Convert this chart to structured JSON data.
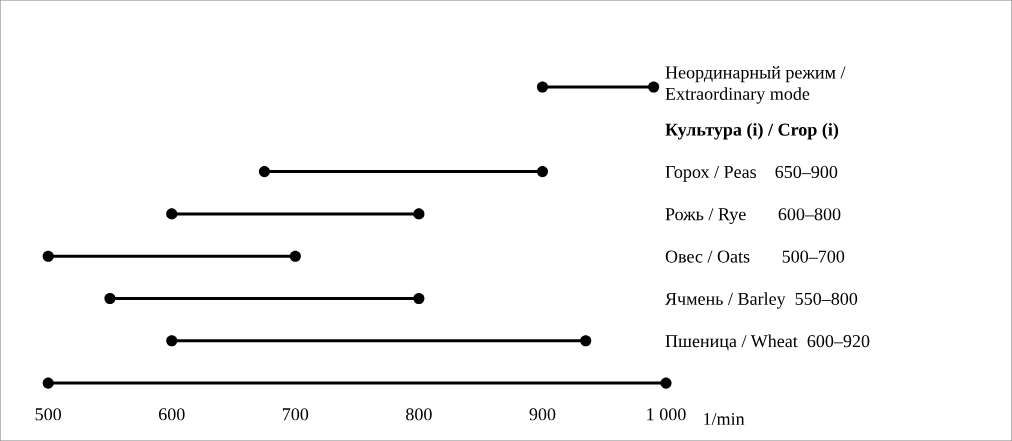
{
  "chart_data": {
    "type": "bar",
    "orientation": "horizontal",
    "categories": [
      "Неординарный режим /\nExtraordinary mode",
      "Культура (i) / Crop (i)",
      "Горох / Peas    650–900",
      "Рожь / Rye       600–800",
      "Овес / Oats       500–700",
      "Ячмень / Barley  550–800",
      "Пшеница / Wheat  600–920",
      null
    ],
    "series": [
      {
        "color": "#000000",
        "base": [
          900,
          null,
          675,
          600,
          500,
          550,
          600,
          500
        ],
        "values": [
          90,
          null,
          225,
          200,
          200,
          250,
          335,
          500
        ]
      },
      {
        "type": "scatter",
        "color": "#000000",
        "marker": "circle",
        "values": [
          900,
          null,
          675,
          600,
          500,
          550,
          600,
          500
        ]
      },
      {
        "type": "scatter",
        "color": "#000000",
        "marker": "circle",
        "values": [
          990,
          null,
          900,
          800,
          700,
          800,
          935,
          1000
        ]
      }
    ],
    "xlabel": "1/min",
    "xlim": [
      461,
      1280
    ],
    "xticks": [
      500,
      600,
      700,
      800,
      900,
      {
        "value": 1000,
        "label": "1 000"
      }
    ],
    "grid": false
  }
}
